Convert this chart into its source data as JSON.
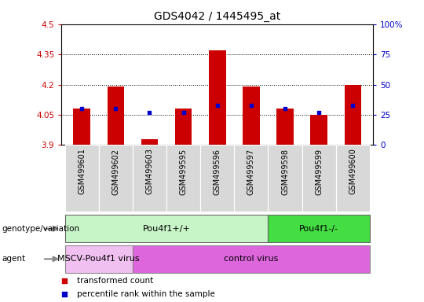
{
  "title": "GDS4042 / 1445495_at",
  "samples": [
    "GSM499601",
    "GSM499602",
    "GSM499603",
    "GSM499595",
    "GSM499596",
    "GSM499597",
    "GSM499598",
    "GSM499599",
    "GSM499600"
  ],
  "red_values": [
    4.08,
    4.19,
    3.93,
    4.08,
    4.37,
    4.19,
    4.08,
    4.05,
    4.2
  ],
  "blue_values": [
    30,
    30,
    27,
    27,
    33,
    33,
    30,
    27,
    33
  ],
  "ylim_left": [
    3.9,
    4.5
  ],
  "ylim_right": [
    0,
    100
  ],
  "yticks_left": [
    3.9,
    4.05,
    4.2,
    4.35,
    4.5
  ],
  "ytick_labels_left": [
    "3.9",
    "4.05",
    "4.2",
    "4.35",
    "4.5"
  ],
  "yticks_right": [
    0,
    25,
    50,
    75,
    100
  ],
  "ytick_labels_right": [
    "0",
    "25",
    "50",
    "75",
    "100%"
  ],
  "grid_yticks": [
    4.05,
    4.2,
    4.35
  ],
  "bar_bottom": 3.9,
  "genotype_groups": [
    {
      "label": "Pou4f1+/+",
      "start": 0,
      "end": 6,
      "color": "#c8f5c8"
    },
    {
      "label": "Pou4f1-/-",
      "start": 6,
      "end": 9,
      "color": "#44dd44"
    }
  ],
  "agent_groups": [
    {
      "label": "MSCV-Pou4f1 virus",
      "start": 0,
      "end": 2,
      "color": "#f0c0f0"
    },
    {
      "label": "control virus",
      "start": 2,
      "end": 9,
      "color": "#dd66dd"
    }
  ],
  "legend_items": [
    {
      "label": "transformed count",
      "color": "#cc0000"
    },
    {
      "label": "percentile rank within the sample",
      "color": "#0000cc"
    }
  ],
  "genotype_label": "genotype/variation",
  "agent_label": "agent",
  "title_fontsize": 10,
  "tick_fontsize": 7.5,
  "bar_width": 0.5,
  "red_color": "#cc0000",
  "blue_color": "#0000cc",
  "left_tick_color": "#cc0000",
  "right_tick_color": "#0000cc",
  "xtick_bg_color": "#d8d8d8",
  "xtick_border_color": "#aaaaaa"
}
